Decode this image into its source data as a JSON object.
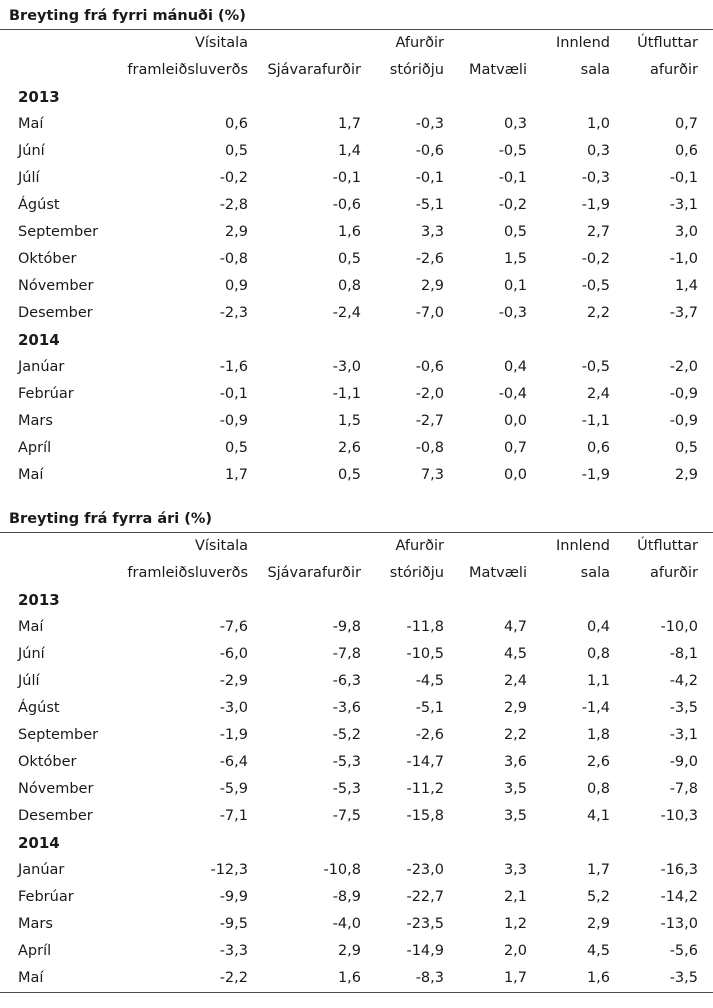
{
  "sections": [
    {
      "title": "Breyting frá fyrri mánuði (%)",
      "header_top": [
        "Vísitala",
        "",
        "Afurðir",
        "",
        "Innlend",
        "Útfluttar"
      ],
      "header_bottom": [
        "framleiðsluverðs",
        "Sjávarafurðir",
        "stóriðju",
        "Matvæli",
        "sala",
        "afurðir"
      ],
      "groups": [
        {
          "year": "2013",
          "rows": [
            {
              "label": "Maí",
              "values": [
                "0,6",
                "1,7",
                "-0,3",
                "0,3",
                "1,0",
                "0,7"
              ]
            },
            {
              "label": "Júní",
              "values": [
                "0,5",
                "1,4",
                "-0,6",
                "-0,5",
                "0,3",
                "0,6"
              ]
            },
            {
              "label": "Júlí",
              "values": [
                "-0,2",
                "-0,1",
                "-0,1",
                "-0,1",
                "-0,3",
                "-0,1"
              ]
            },
            {
              "label": "Ágúst",
              "values": [
                "-2,8",
                "-0,6",
                "-5,1",
                "-0,2",
                "-1,9",
                "-3,1"
              ]
            },
            {
              "label": "September",
              "values": [
                "2,9",
                "1,6",
                "3,3",
                "0,5",
                "2,7",
                "3,0"
              ]
            },
            {
              "label": "Október",
              "values": [
                "-0,8",
                "0,5",
                "-2,6",
                "1,5",
                "-0,2",
                "-1,0"
              ]
            },
            {
              "label": "Nóvember",
              "values": [
                "0,9",
                "0,8",
                "2,9",
                "0,1",
                "-0,5",
                "1,4"
              ]
            },
            {
              "label": "Desember",
              "values": [
                "-2,3",
                "-2,4",
                "-7,0",
                "-0,3",
                "2,2",
                "-3,7"
              ]
            }
          ]
        },
        {
          "year": "2014",
          "rows": [
            {
              "label": "Janúar",
              "values": [
                "-1,6",
                "-3,0",
                "-0,6",
                "0,4",
                "-0,5",
                "-2,0"
              ]
            },
            {
              "label": "Febrúar",
              "values": [
                "-0,1",
                "-1,1",
                "-2,0",
                "-0,4",
                "2,4",
                "-0,9"
              ]
            },
            {
              "label": "Mars",
              "values": [
                "-0,9",
                "1,5",
                "-2,7",
                "0,0",
                "-1,1",
                "-0,9"
              ]
            },
            {
              "label": "Apríl",
              "values": [
                "0,5",
                "2,6",
                "-0,8",
                "0,7",
                "0,6",
                "0,5"
              ]
            },
            {
              "label": "Maí",
              "values": [
                "1,7",
                "0,5",
                "7,3",
                "0,0",
                "-1,9",
                "2,9"
              ]
            }
          ]
        }
      ]
    },
    {
      "title": "Breyting frá fyrra ári (%)",
      "header_top": [
        "Vísitala",
        "",
        "Afurðir",
        "",
        "Innlend",
        "Útfluttar"
      ],
      "header_bottom": [
        "framleiðsluverðs",
        "Sjávarafurðir",
        "stóriðju",
        "Matvæli",
        "sala",
        "afurðir"
      ],
      "groups": [
        {
          "year": "2013",
          "rows": [
            {
              "label": "Maí",
              "values": [
                "-7,6",
                "-9,8",
                "-11,8",
                "4,7",
                "0,4",
                "-10,0"
              ]
            },
            {
              "label": "Júní",
              "values": [
                "-6,0",
                "-7,8",
                "-10,5",
                "4,5",
                "0,8",
                "-8,1"
              ]
            },
            {
              "label": "Júlí",
              "values": [
                "-2,9",
                "-6,3",
                "-4,5",
                "2,4",
                "1,1",
                "-4,2"
              ]
            },
            {
              "label": "Ágúst",
              "values": [
                "-3,0",
                "-3,6",
                "-5,1",
                "2,9",
                "-1,4",
                "-3,5"
              ]
            },
            {
              "label": "September",
              "values": [
                "-1,9",
                "-5,2",
                "-2,6",
                "2,2",
                "1,8",
                "-3,1"
              ]
            },
            {
              "label": "Október",
              "values": [
                "-6,4",
                "-5,3",
                "-14,7",
                "3,6",
                "2,6",
                "-9,0"
              ]
            },
            {
              "label": "Nóvember",
              "values": [
                "-5,9",
                "-5,3",
                "-11,2",
                "3,5",
                "0,8",
                "-7,8"
              ]
            },
            {
              "label": "Desember",
              "values": [
                "-7,1",
                "-7,5",
                "-15,8",
                "3,5",
                "4,1",
                "-10,3"
              ]
            }
          ]
        },
        {
          "year": "2014",
          "rows": [
            {
              "label": "Janúar",
              "values": [
                "-12,3",
                "-10,8",
                "-23,0",
                "3,3",
                "1,7",
                "-16,3"
              ]
            },
            {
              "label": "Febrúar",
              "values": [
                "-9,9",
                "-8,9",
                "-22,7",
                "2,1",
                "5,2",
                "-14,2"
              ]
            },
            {
              "label": "Mars",
              "values": [
                "-9,5",
                "-4,0",
                "-23,5",
                "1,2",
                "2,9",
                "-13,0"
              ]
            },
            {
              "label": "Apríl",
              "values": [
                "-3,3",
                "2,9",
                "-14,9",
                "2,0",
                "4,5",
                "-5,6"
              ]
            },
            {
              "label": "Maí",
              "values": [
                "-2,2",
                "1,6",
                "-8,3",
                "1,7",
                "1,6",
                "-3,5"
              ]
            }
          ]
        }
      ]
    }
  ]
}
